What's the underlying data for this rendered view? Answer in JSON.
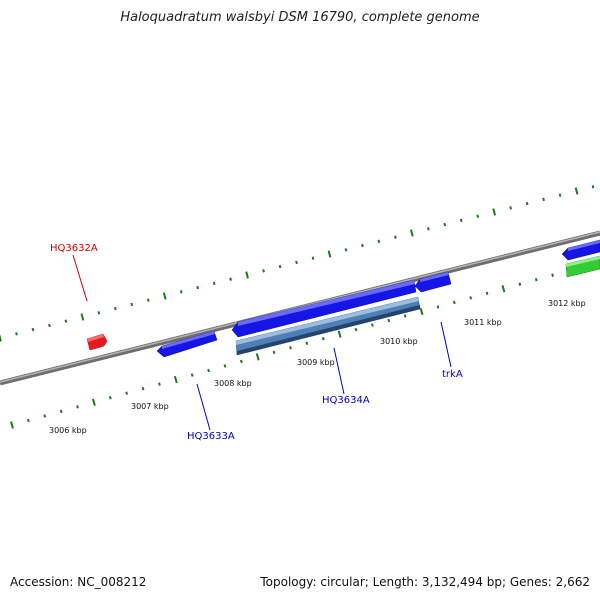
{
  "title": "Haloquadratum walsbyi DSM 16790, complete genome",
  "footer": {
    "accession": "Accession: NC_008212",
    "summary": "Topology: circular; Length: 3,132,494 bp; Genes: 2,662"
  },
  "colors": {
    "backbone": "#8a8a8a",
    "tick": "#1a7a1a",
    "gene_blue": "#1515e6",
    "gene_steel": "#4f80b5",
    "gene_red": "#e31b1b",
    "gene_green": "#33cc33",
    "label_blue": "#0000cc",
    "label_red": "#cc0000"
  },
  "scale_labels": [
    "3006 kbp",
    "3007 kbp",
    "3008 kbp",
    "3009 kbp",
    "3010 kbp",
    "3011 kbp",
    "3012 kbp"
  ],
  "gene_labels": [
    {
      "name": "HQ3632A",
      "color": "red"
    },
    {
      "name": "HQ3633A",
      "color": "blue"
    },
    {
      "name": "HQ3634A",
      "color": "blue"
    },
    {
      "name": "trkA",
      "color": "blue"
    }
  ]
}
